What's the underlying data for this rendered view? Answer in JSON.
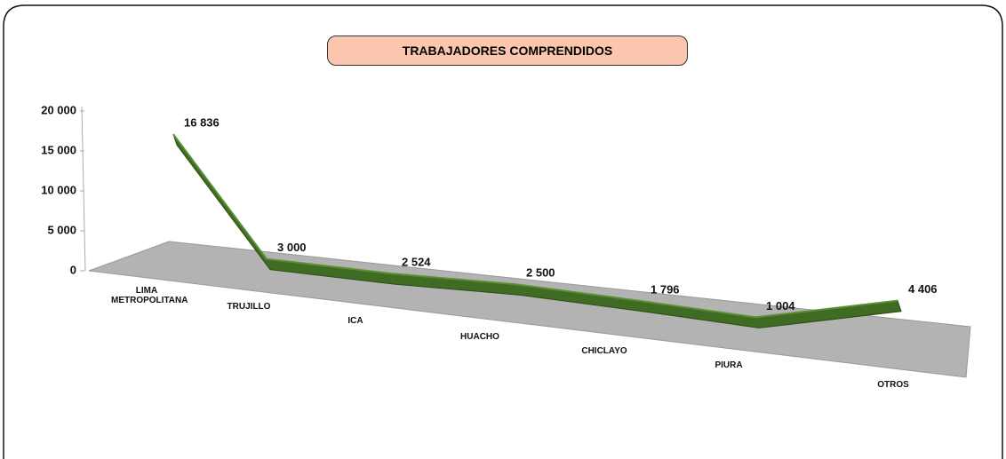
{
  "chart_data": {
    "type": "line3d",
    "title": "TRABAJADORES COMPRENDIDOS",
    "categories": [
      "LIMA METROPOLITANA",
      "TRUJILLO",
      "ICA",
      "HUACHO",
      "CHICLAYO",
      "PIURA",
      "OTROS"
    ],
    "values": [
      16836,
      3000,
      2524,
      2500,
      1796,
      1004,
      4406
    ],
    "value_labels": [
      "16 836",
      "3 000",
      "2 524",
      "2 500",
      "1 796",
      "1 004",
      "4 406"
    ],
    "color": "#3f6b22",
    "ylim": [
      0,
      20000
    ],
    "yticks": [
      0,
      {
        "value": 5000,
        "label": "5 000"
      },
      {
        "value": 10000,
        "label": "10 000"
      },
      {
        "value": 15000,
        "label": "15 000"
      },
      {
        "value": 20000,
        "label": "20 000"
      }
    ]
  }
}
